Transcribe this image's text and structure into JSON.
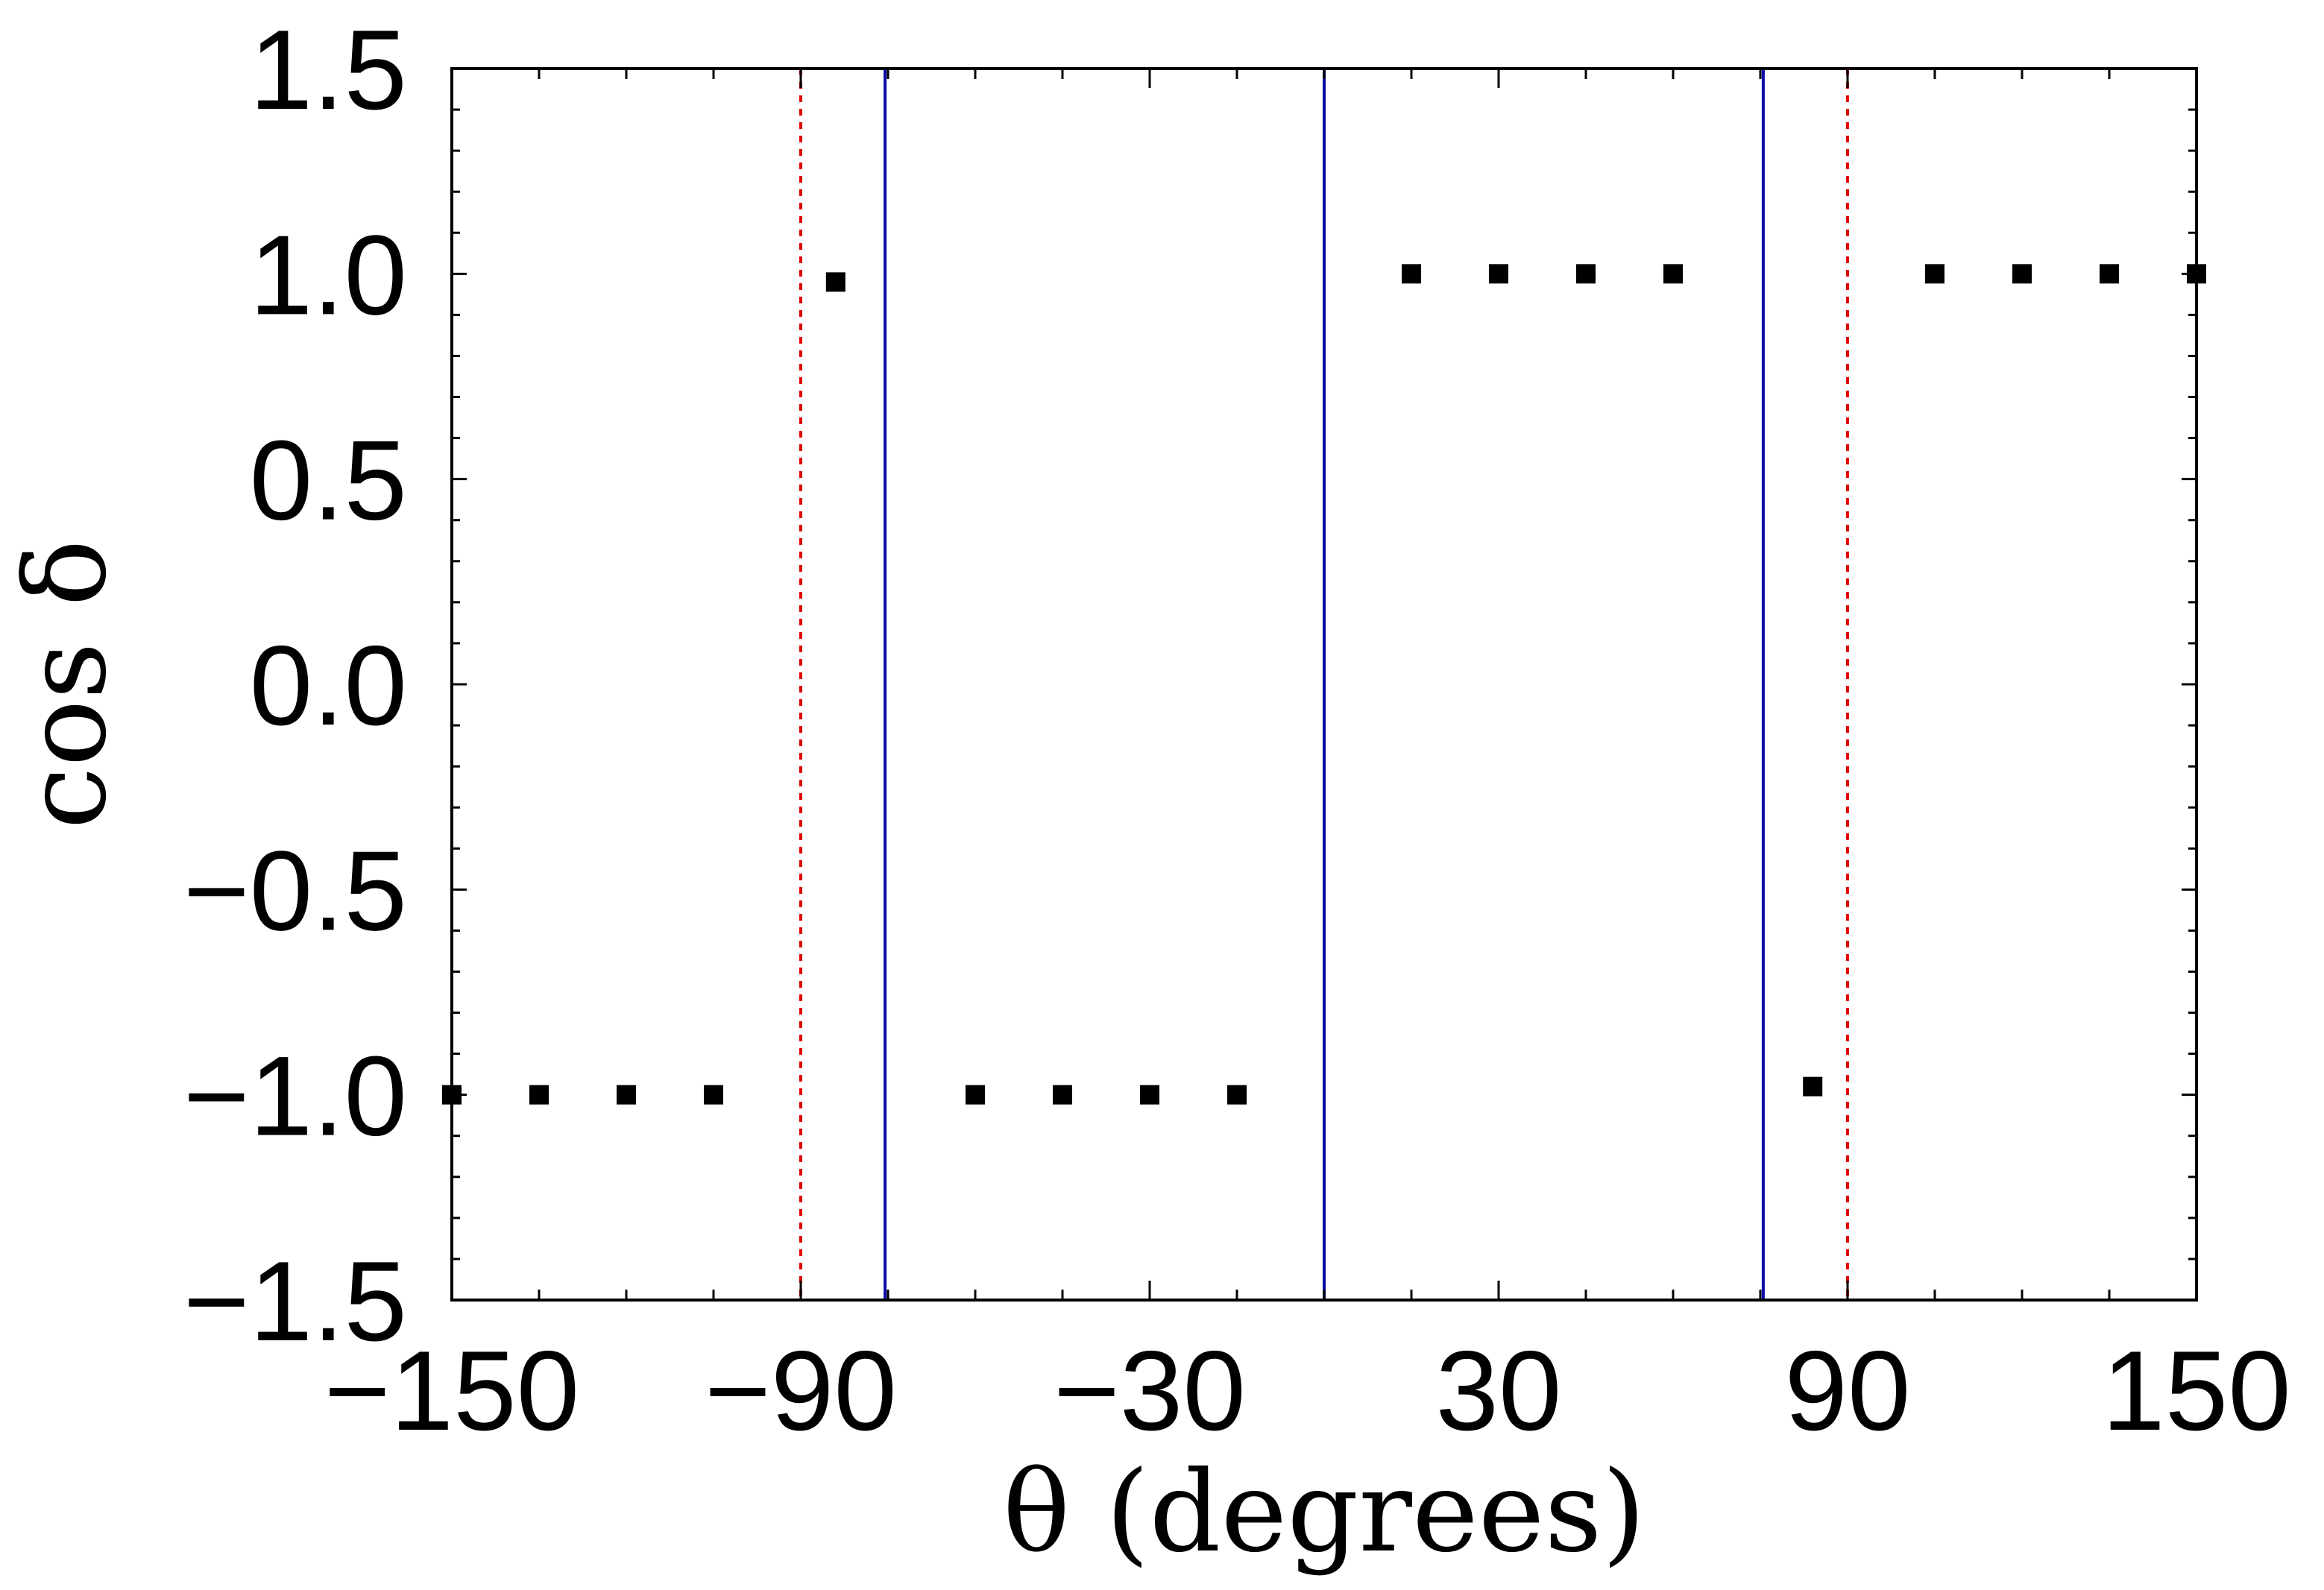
{
  "chart_data": {
    "type": "scatter",
    "title": "",
    "xlabel": "θ (degrees)",
    "ylabel": "cos δ",
    "xlim": [
      -150,
      150
    ],
    "ylim": [
      -1.5,
      1.5
    ],
    "x_ticks": [
      -150,
      -90,
      -30,
      30,
      90,
      150
    ],
    "x_tick_labels": [
      "−150",
      "−90",
      "−30",
      "30",
      "90",
      "150"
    ],
    "y_ticks": [
      1.5,
      1.0,
      0.5,
      0.0,
      -0.5,
      -1.0,
      -1.5
    ],
    "y_tick_labels": [
      "1.5",
      "1.0",
      "0.5",
      "0.0",
      "−0.5",
      "−1.0",
      "−1.5"
    ],
    "grid": false,
    "series": [
      {
        "marker": "square",
        "color": "#000000",
        "points": [
          {
            "x": -150,
            "y": -1.0
          },
          {
            "x": -135,
            "y": -1.0
          },
          {
            "x": -120,
            "y": -1.0
          },
          {
            "x": -105,
            "y": -1.0
          },
          {
            "x": -84,
            "y": 0.98
          },
          {
            "x": -60,
            "y": -1.0
          },
          {
            "x": -45,
            "y": -1.0
          },
          {
            "x": -30,
            "y": -1.0
          },
          {
            "x": -15,
            "y": -1.0
          },
          {
            "x": 15,
            "y": 1.0
          },
          {
            "x": 30,
            "y": 1.0
          },
          {
            "x": 45,
            "y": 1.0
          },
          {
            "x": 60,
            "y": 1.0
          },
          {
            "x": 84,
            "y": -0.98
          },
          {
            "x": 105,
            "y": 1.0
          },
          {
            "x": 120,
            "y": 1.0
          },
          {
            "x": 135,
            "y": 1.0
          },
          {
            "x": 150,
            "y": 1.0
          }
        ]
      }
    ],
    "vertical_lines": [
      {
        "x": -90,
        "style": "dotted",
        "color": "#e00000"
      },
      {
        "x": 90,
        "style": "dotted",
        "color": "#e00000"
      },
      {
        "x": -75.5,
        "style": "solid",
        "color": "#0a0aa8"
      },
      {
        "x": 0,
        "style": "solid",
        "color": "#0a0aa8"
      },
      {
        "x": 75.5,
        "style": "solid",
        "color": "#0a0aa8"
      }
    ]
  }
}
